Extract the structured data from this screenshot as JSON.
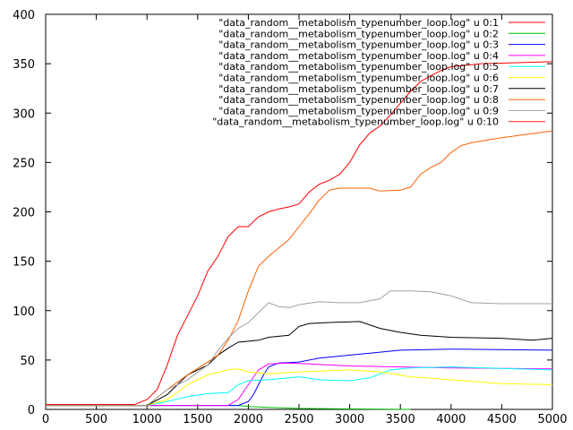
{
  "chart_data": {
    "type": "line",
    "title": "",
    "xlabel": "",
    "ylabel": "",
    "xlim": [
      0,
      5000
    ],
    "ylim": [
      0,
      400
    ],
    "xticks": [
      0,
      500,
      1000,
      1500,
      2000,
      2500,
      3000,
      3500,
      4000,
      4500,
      5000
    ],
    "yticks": [
      0,
      50,
      100,
      150,
      200,
      250,
      300,
      350,
      400
    ],
    "grid": false,
    "legend_position": "top-right",
    "series": [
      {
        "name": "\"data_random__metabolism_typenumber_loop.log\" u 0:1",
        "color": "#ff0000",
        "points": [
          [
            0,
            5
          ],
          [
            880,
            5
          ],
          [
            1000,
            10
          ],
          [
            1100,
            20
          ],
          [
            1200,
            45
          ],
          [
            1300,
            75
          ],
          [
            1400,
            95
          ],
          [
            1500,
            115
          ],
          [
            1600,
            140
          ],
          [
            1700,
            155
          ],
          [
            1800,
            175
          ],
          [
            1900,
            185
          ],
          [
            2000,
            185
          ],
          [
            2100,
            195
          ],
          [
            2200,
            200
          ],
          [
            2300,
            203
          ],
          [
            2400,
            205
          ],
          [
            2500,
            208
          ],
          [
            2600,
            220
          ],
          [
            2700,
            228
          ],
          [
            2800,
            232
          ],
          [
            2900,
            238
          ],
          [
            3000,
            250
          ],
          [
            3100,
            268
          ],
          [
            3200,
            280
          ],
          [
            3300,
            287
          ],
          [
            3400,
            298
          ],
          [
            3500,
            310
          ],
          [
            3600,
            322
          ],
          [
            3700,
            332
          ],
          [
            3800,
            338
          ],
          [
            3900,
            343
          ],
          [
            4000,
            347
          ],
          [
            4300,
            350
          ],
          [
            5000,
            352
          ]
        ]
      },
      {
        "name": "\"data_random__metabolism_typenumber_loop.log\" u 0:2",
        "color": "#00c000",
        "points": [
          [
            0,
            4
          ],
          [
            1900,
            4
          ],
          [
            2000,
            3
          ],
          [
            2200,
            2
          ],
          [
            2500,
            1
          ],
          [
            3600,
            0
          ]
        ]
      },
      {
        "name": "\"data_random__metabolism_typenumber_loop.log\" u 0:3",
        "color": "#0000ff",
        "points": [
          [
            0,
            4
          ],
          [
            1900,
            4
          ],
          [
            2000,
            8
          ],
          [
            2050,
            15
          ],
          [
            2100,
            25
          ],
          [
            2150,
            35
          ],
          [
            2200,
            43
          ],
          [
            2300,
            47
          ],
          [
            2500,
            48
          ],
          [
            2700,
            52
          ],
          [
            3000,
            55
          ],
          [
            3200,
            57
          ],
          [
            3500,
            60
          ],
          [
            4000,
            61
          ],
          [
            5000,
            60
          ]
        ]
      },
      {
        "name": "\"data_random__metabolism_typenumber_loop.log\" u 0:4",
        "color": "#ff00ff",
        "points": [
          [
            0,
            4
          ],
          [
            1800,
            4
          ],
          [
            1900,
            10
          ],
          [
            2000,
            25
          ],
          [
            2100,
            40
          ],
          [
            2200,
            46
          ],
          [
            2400,
            47
          ],
          [
            2600,
            46
          ],
          [
            2800,
            45
          ],
          [
            3000,
            44
          ],
          [
            3500,
            43
          ],
          [
            4000,
            42
          ],
          [
            5000,
            41
          ]
        ]
      },
      {
        "name": "\"data_random__metabolism_typenumber_loop.log\" u 0:5",
        "color": "#00ffff",
        "points": [
          [
            0,
            4
          ],
          [
            1000,
            4
          ],
          [
            1200,
            8
          ],
          [
            1400,
            13
          ],
          [
            1600,
            16
          ],
          [
            1800,
            17
          ],
          [
            1900,
            25
          ],
          [
            2000,
            29
          ],
          [
            2200,
            30
          ],
          [
            2500,
            33
          ],
          [
            2700,
            30
          ],
          [
            3000,
            29
          ],
          [
            3200,
            32
          ],
          [
            3400,
            40
          ],
          [
            3600,
            42
          ],
          [
            4000,
            43
          ],
          [
            5000,
            40
          ]
        ]
      },
      {
        "name": "\"data_random__metabolism_typenumber_loop.log\" u 0:6",
        "color": "#ffff00",
        "points": [
          [
            0,
            4
          ],
          [
            1000,
            4
          ],
          [
            1200,
            10
          ],
          [
            1400,
            25
          ],
          [
            1600,
            35
          ],
          [
            1800,
            40
          ],
          [
            1900,
            41
          ],
          [
            2000,
            38
          ],
          [
            2200,
            36
          ],
          [
            2500,
            38
          ],
          [
            3000,
            40
          ],
          [
            3300,
            38
          ],
          [
            3600,
            33
          ],
          [
            4000,
            30
          ],
          [
            4500,
            26
          ],
          [
            5000,
            25
          ]
        ]
      },
      {
        "name": "\"data_random__metabolism_typenumber_loop.log\" u 0:7",
        "color": "#000000",
        "points": [
          [
            0,
            4
          ],
          [
            1000,
            4
          ],
          [
            1200,
            15
          ],
          [
            1400,
            35
          ],
          [
            1600,
            45
          ],
          [
            1700,
            55
          ],
          [
            1800,
            62
          ],
          [
            1900,
            68
          ],
          [
            2100,
            70
          ],
          [
            2200,
            73
          ],
          [
            2400,
            75
          ],
          [
            2500,
            84
          ],
          [
            2600,
            87
          ],
          [
            2800,
            88
          ],
          [
            3100,
            89
          ],
          [
            3300,
            82
          ],
          [
            3500,
            78
          ],
          [
            3700,
            75
          ],
          [
            4000,
            73
          ],
          [
            4500,
            72
          ],
          [
            4800,
            70
          ],
          [
            5000,
            72
          ]
        ]
      },
      {
        "name": "\"data_random__metabolism_typenumber_loop.log\" u 0:8",
        "color": "#ff6000",
        "points": [
          [
            0,
            4
          ],
          [
            1000,
            4
          ],
          [
            1200,
            20
          ],
          [
            1400,
            35
          ],
          [
            1600,
            48
          ],
          [
            1700,
            55
          ],
          [
            1800,
            70
          ],
          [
            1900,
            90
          ],
          [
            2000,
            120
          ],
          [
            2100,
            145
          ],
          [
            2200,
            155
          ],
          [
            2400,
            172
          ],
          [
            2500,
            185
          ],
          [
            2600,
            198
          ],
          [
            2700,
            212
          ],
          [
            2800,
            222
          ],
          [
            2900,
            224
          ],
          [
            3000,
            224
          ],
          [
            3200,
            224
          ],
          [
            3300,
            221
          ],
          [
            3500,
            222
          ],
          [
            3600,
            225
          ],
          [
            3700,
            238
          ],
          [
            3800,
            245
          ],
          [
            3900,
            250
          ],
          [
            4000,
            260
          ],
          [
            4100,
            267
          ],
          [
            4200,
            270
          ],
          [
            4500,
            275
          ],
          [
            5000,
            282
          ]
        ]
      },
      {
        "name": "\"data_random__metabolism_typenumber_loop.log\" u 0:9",
        "color": "#a0a0a0",
        "points": [
          [
            0,
            4
          ],
          [
            1000,
            4
          ],
          [
            1200,
            20
          ],
          [
            1400,
            30
          ],
          [
            1600,
            45
          ],
          [
            1700,
            60
          ],
          [
            1800,
            72
          ],
          [
            1900,
            82
          ],
          [
            2000,
            88
          ],
          [
            2100,
            98
          ],
          [
            2200,
            108
          ],
          [
            2300,
            104
          ],
          [
            2400,
            103
          ],
          [
            2500,
            106
          ],
          [
            2700,
            109
          ],
          [
            2900,
            108
          ],
          [
            3100,
            108
          ],
          [
            3300,
            112
          ],
          [
            3400,
            120
          ],
          [
            3600,
            120
          ],
          [
            3800,
            119
          ],
          [
            4000,
            115
          ],
          [
            4200,
            108
          ],
          [
            4500,
            107
          ],
          [
            5000,
            107
          ]
        ]
      },
      {
        "name": "\"data_random__metabolism_typenumber_loop.log\" u 0:10",
        "color": "#ff2020",
        "points": []
      }
    ]
  }
}
